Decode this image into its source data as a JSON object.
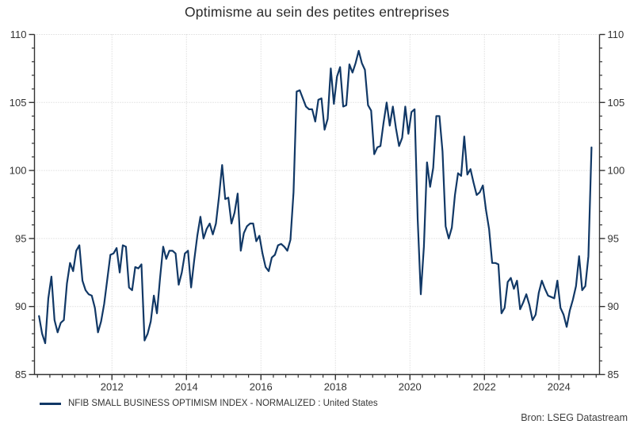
{
  "title": "Optimisme au sein des petites entreprises",
  "source": "Bron: LSEG Datastream",
  "legend": {
    "label": "NFIB SMALL BUSINESS OPTIMISM INDEX - NORMALIZED : United States"
  },
  "colors": {
    "line": "#113866",
    "axis": "#333333",
    "grid": "#cdcdcd",
    "tick_label": "#333333",
    "background": "#ffffff"
  },
  "chart_data": {
    "type": "line",
    "title": "Optimisme au sein des petites entreprises",
    "xlabel": "",
    "ylabel": "",
    "x_axis": {
      "range": [
        2009.92,
        2025.09
      ],
      "ticks": [
        2012,
        2014,
        2016,
        2018,
        2020,
        2022,
        2024
      ],
      "minor_tick_step_years": 0.33333,
      "minor_tick_start": 2010.0,
      "minor_tick_end": 2025.0
    },
    "y_axis": {
      "range": [
        85,
        110
      ],
      "ticks": [
        85,
        90,
        95,
        100,
        105,
        110
      ],
      "minor_tick_step": 1,
      "sides": [
        "left",
        "right"
      ]
    },
    "grid": {
      "style": "dotted",
      "horizontal_at": [
        90,
        95,
        100,
        105,
        110
      ],
      "vertical_at": [
        2012,
        2014,
        2016,
        2018,
        2020,
        2022,
        2024
      ]
    },
    "legend_position": "bottom-left",
    "series": [
      {
        "name": "NFIB SMALL BUSINESS OPTIMISM INDEX - NORMALIZED : United States",
        "color": "#113866",
        "frequency": "monthly",
        "start": "2010-01",
        "end": "2024-11",
        "values": [
          89.3,
          88.0,
          87.3,
          90.6,
          92.2,
          89.0,
          88.1,
          88.8,
          89.0,
          91.7,
          93.2,
          92.6,
          94.1,
          94.5,
          91.9,
          91.2,
          90.9,
          90.8,
          89.9,
          88.1,
          88.9,
          90.2,
          92.0,
          93.8,
          93.9,
          94.3,
          92.5,
          94.5,
          94.4,
          91.4,
          91.2,
          92.9,
          92.8,
          93.1,
          87.5,
          88.0,
          88.9,
          90.8,
          89.5,
          92.1,
          94.4,
          93.5,
          94.1,
          94.1,
          93.9,
          91.6,
          92.5,
          93.9,
          94.1,
          91.4,
          93.4,
          95.2,
          96.6,
          95.0,
          95.7,
          96.1,
          95.3,
          96.1,
          98.1,
          100.4,
          97.9,
          98.0,
          96.1,
          96.9,
          98.3,
          94.1,
          95.4,
          95.9,
          96.1,
          96.1,
          94.8,
          95.2,
          93.9,
          92.9,
          92.6,
          93.6,
          93.8,
          94.5,
          94.6,
          94.4,
          94.1,
          94.9,
          98.4,
          105.8,
          105.9,
          105.3,
          104.7,
          104.5,
          104.5,
          103.6,
          105.2,
          105.3,
          103.0,
          103.8,
          107.5,
          104.9,
          106.9,
          107.6,
          104.7,
          104.8,
          107.8,
          107.2,
          107.9,
          108.8,
          107.9,
          107.4,
          104.8,
          104.4,
          101.2,
          101.7,
          101.8,
          103.5,
          105.0,
          103.3,
          104.7,
          103.1,
          101.8,
          102.4,
          104.7,
          102.7,
          104.3,
          104.5,
          96.4,
          90.9,
          94.4,
          100.6,
          98.8,
          100.2,
          104.0,
          104.0,
          101.4,
          95.9,
          95.0,
          95.8,
          98.2,
          99.8,
          99.6,
          102.5,
          99.7,
          100.1,
          99.1,
          98.2,
          98.4,
          98.9,
          97.1,
          95.7,
          93.2,
          93.2,
          93.1,
          89.5,
          89.9,
          91.8,
          92.1,
          91.3,
          91.9,
          89.8,
          90.3,
          90.9,
          90.1,
          89.0,
          89.4,
          91.0,
          91.9,
          91.3,
          90.8,
          90.7,
          90.6,
          91.9,
          89.9,
          89.4,
          88.5,
          89.7,
          90.5,
          91.5,
          93.7,
          91.2,
          91.5,
          93.7,
          101.7
        ]
      }
    ]
  }
}
